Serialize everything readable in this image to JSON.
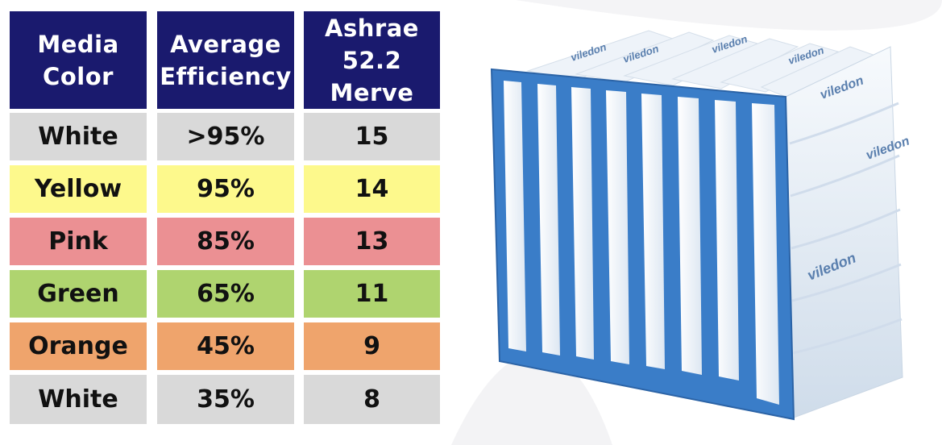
{
  "table": {
    "headers": [
      "Media\nColor",
      "Average\nEfficiency",
      "Ashrae\n52.2\nMerve"
    ],
    "rows": [
      {
        "color_name": "White",
        "efficiency": ">95%",
        "merv": "15",
        "bg": "#d9d9d9"
      },
      {
        "color_name": "Yellow",
        "efficiency": "95%",
        "merv": "14",
        "bg": "#fdf98c"
      },
      {
        "color_name": "Pink",
        "efficiency": "85%",
        "merv": "13",
        "bg": "#eb9093"
      },
      {
        "color_name": "Green",
        "efficiency": "65%",
        "merv": "11",
        "bg": "#afd46f"
      },
      {
        "color_name": "Orange",
        "efficiency": "45%",
        "merv": "9",
        "bg": "#efa46c"
      },
      {
        "color_name": "White",
        "efficiency": "35%",
        "merv": "8",
        "bg": "#d9d9d9"
      }
    ]
  },
  "image": {
    "brand_text": "viledon",
    "frame_color": "#3a7dc8",
    "media_color": "#f2f6fb"
  }
}
